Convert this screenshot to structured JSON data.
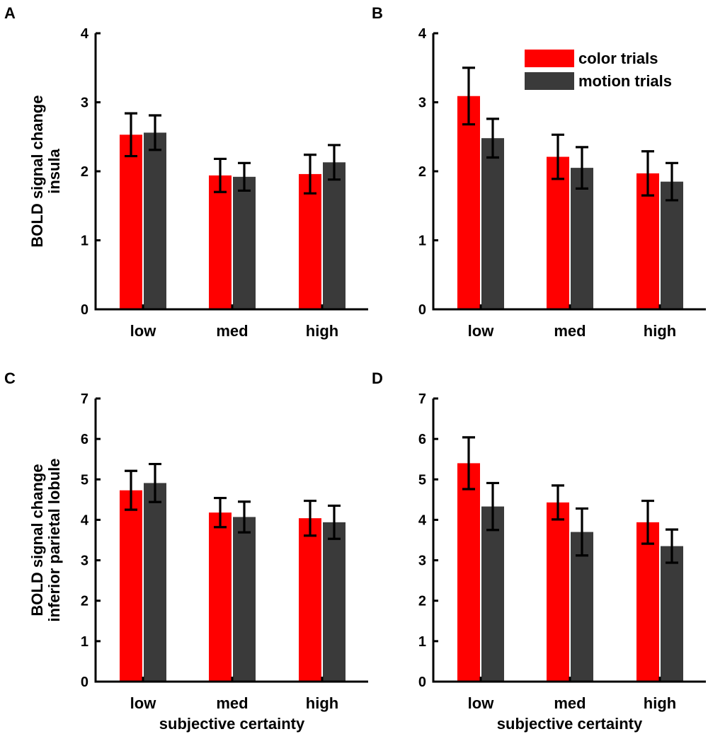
{
  "figure": {
    "colors": {
      "color_trials": "#ff0000",
      "motion_trials": "#3a3a3a",
      "axis": "#000000"
    },
    "legend": {
      "placement": "top-right of panel B",
      "entries": [
        "color trials",
        "motion trials"
      ]
    }
  },
  "chart_data": [
    {
      "id": "A",
      "type": "bar",
      "panel_label": "A",
      "categories": [
        "low",
        "med",
        "high"
      ],
      "ylabel": "BOLD signal change\ninsula",
      "xlabel": "",
      "ylim": [
        0,
        4
      ],
      "yticks": [
        0,
        1,
        2,
        3,
        4
      ],
      "series": [
        {
          "name": "color trials",
          "values": [
            2.53,
            1.94,
            1.96
          ],
          "errors": [
            0.31,
            0.24,
            0.28
          ]
        },
        {
          "name": "motion trials",
          "values": [
            2.56,
            1.92,
            2.13
          ],
          "errors": [
            0.25,
            0.2,
            0.25
          ]
        }
      ]
    },
    {
      "id": "B",
      "type": "bar",
      "panel_label": "B",
      "categories": [
        "low",
        "med",
        "high"
      ],
      "ylabel": "",
      "xlabel": "",
      "ylim": [
        0,
        4
      ],
      "yticks": [
        0,
        1,
        2,
        3,
        4
      ],
      "series": [
        {
          "name": "color trials",
          "values": [
            3.09,
            2.21,
            1.97
          ],
          "errors": [
            0.41,
            0.32,
            0.32
          ]
        },
        {
          "name": "motion trials",
          "values": [
            2.48,
            2.05,
            1.85
          ],
          "errors": [
            0.28,
            0.3,
            0.27
          ]
        }
      ]
    },
    {
      "id": "C",
      "type": "bar",
      "panel_label": "C",
      "categories": [
        "low",
        "med",
        "high"
      ],
      "ylabel": "BOLD signal change\ninferior parietal lobule",
      "xlabel": "subjective certainty",
      "ylim": [
        0,
        7
      ],
      "yticks": [
        0,
        1,
        2,
        3,
        4,
        5,
        6,
        7
      ],
      "series": [
        {
          "name": "color trials",
          "values": [
            4.73,
            4.18,
            4.04
          ],
          "errors": [
            0.48,
            0.36,
            0.43
          ]
        },
        {
          "name": "motion trials",
          "values": [
            4.91,
            4.07,
            3.94
          ],
          "errors": [
            0.47,
            0.38,
            0.41
          ]
        }
      ]
    },
    {
      "id": "D",
      "type": "bar",
      "panel_label": "D",
      "categories": [
        "low",
        "med",
        "high"
      ],
      "ylabel": "",
      "xlabel": "subjective certainty",
      "ylim": [
        0,
        7
      ],
      "yticks": [
        0,
        1,
        2,
        3,
        4,
        5,
        6,
        7
      ],
      "series": [
        {
          "name": "color trials",
          "values": [
            5.4,
            4.43,
            3.94
          ],
          "errors": [
            0.64,
            0.42,
            0.53
          ]
        },
        {
          "name": "motion trials",
          "values": [
            4.33,
            3.7,
            3.35
          ],
          "errors": [
            0.58,
            0.58,
            0.41
          ]
        }
      ]
    }
  ]
}
